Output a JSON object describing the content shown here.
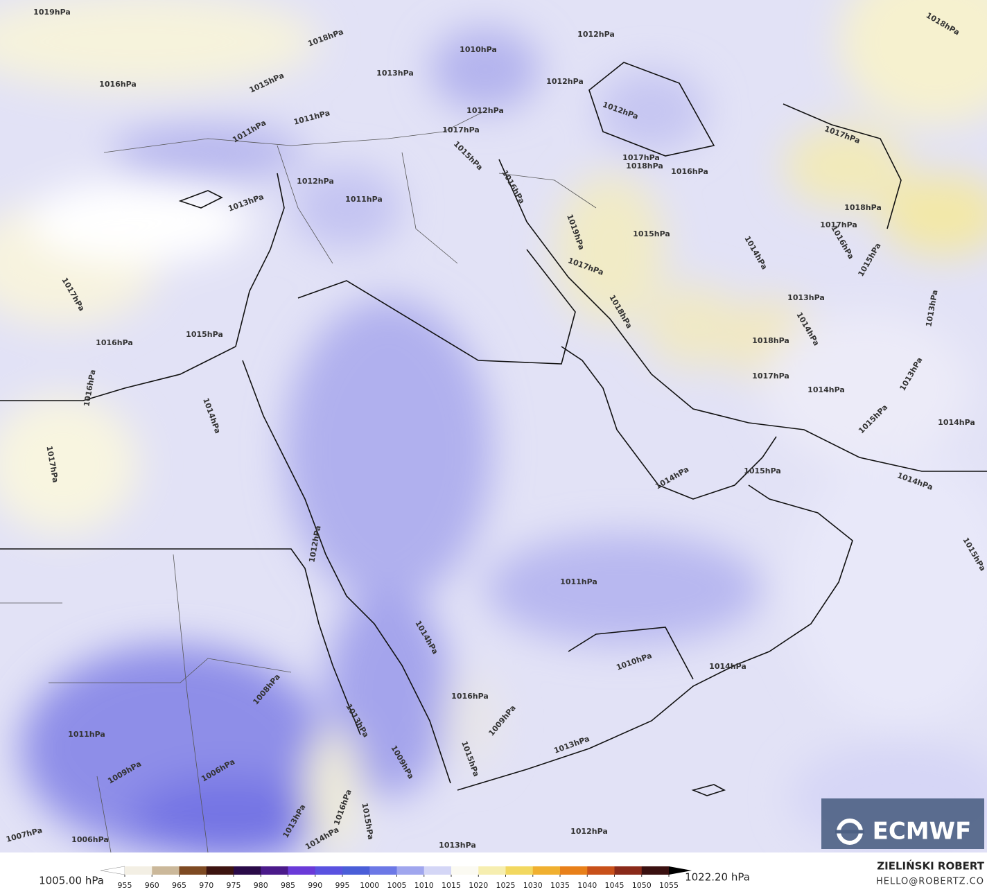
{
  "map": {
    "isobar_labels": [
      "1019hPa",
      "1018hPa",
      "1012hPa",
      "1010hPa",
      "1018hPa",
      "1016hPa",
      "1015hPa",
      "1013hPa",
      "1012hPa",
      "1012hPa",
      "1011hPa",
      "1011hPa",
      "1012hPa",
      "1017hPa",
      "1017hPa",
      "1015hPa",
      "1017hPa",
      "1018hPa",
      "1016hPa",
      "1012hPa",
      "1011hPa",
      "1013hPa",
      "1016hPa",
      "1018hPa",
      "1019hPa",
      "1017hPa",
      "1015hPa",
      "1016hPa",
      "1014hPa",
      "1015hPa",
      "1017hPa",
      "1017hPa",
      "1013hPa",
      "1018hPa",
      "1014hPa",
      "1013hPa",
      "1015hPa",
      "1016hPa",
      "1018hPa",
      "1017hPa",
      "1016hPa",
      "1014hPa",
      "1013hPa",
      "1014hPa",
      "1017hPa",
      "1015hPa",
      "1014hPa",
      "1014hPa",
      "1015hPa",
      "1014hPa",
      "1012hPa",
      "1015hPa",
      "1011hPa",
      "1014hPa",
      "1010hPa",
      "1014hPa",
      "1008hPa",
      "1016hPa",
      "1011hPa",
      "1013hPa",
      "1009hPa",
      "1013hPa",
      "1009hPa",
      "1006hPa",
      "1009hPa",
      "1015hPa",
      "1013hPa",
      "1016hPa",
      "1015hPa",
      "1007hPa",
      "1006hPa",
      "1014hPa",
      "1013hPa",
      "1012hPa"
    ]
  },
  "legend": {
    "min_label": "1005.00 hPa",
    "max_label": "1022.20 hPa",
    "ticks": [
      955,
      960,
      965,
      970,
      975,
      980,
      985,
      990,
      995,
      1000,
      1005,
      1010,
      1015,
      1020,
      1025,
      1030,
      1035,
      1040,
      1045,
      1050,
      1055
    ],
    "colors": [
      "#f3efe4",
      "#cbb89a",
      "#7e4a22",
      "#3d1410",
      "#2a0a48",
      "#4b1a8a",
      "#6a3ad8",
      "#5a52e0",
      "#4a5ed8",
      "#6c78e6",
      "#a0a6ee",
      "#d4d6f6",
      "#fbfaf2",
      "#f6eeb0",
      "#f2d860",
      "#f0b030",
      "#e8801a",
      "#c8501a",
      "#8a2a1a",
      "#3a1010",
      "#000000"
    ]
  },
  "credits": {
    "author": "ZIELIŃSKI ROBERT",
    "email": "HELLO@ROBERTZ.CO",
    "logo": "ECMWF"
  }
}
